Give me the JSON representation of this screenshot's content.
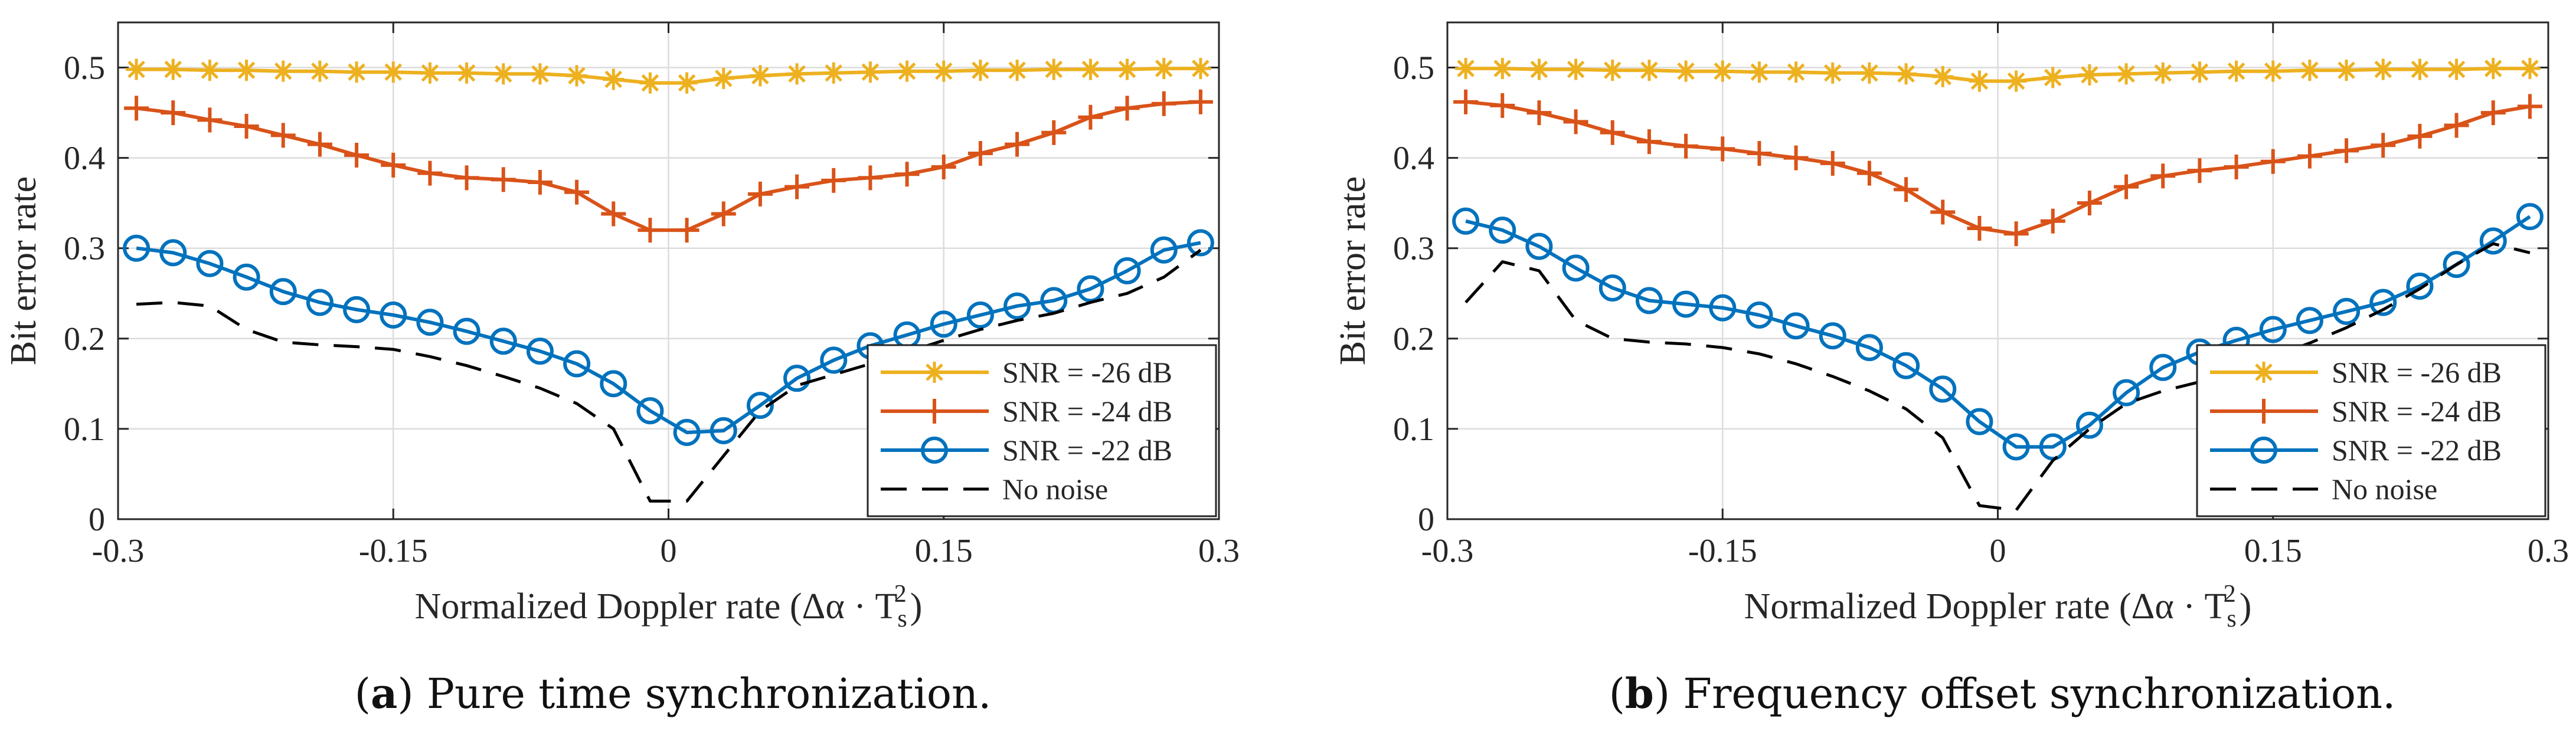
{
  "chart_data": [
    {
      "type": "line",
      "panel": "a",
      "caption_label": "a",
      "caption_text": "Pure time synchronization.",
      "xlabel": "Normalized Doppler rate (Δα · T",
      "xlabel_sub": "s",
      "xlabel_sup": "2",
      "xlabel_close": ")",
      "ylabel": "Bit error rate",
      "xlim": [
        -0.3,
        0.3
      ],
      "ylim": [
        0,
        0.55
      ],
      "xticks": [
        -0.3,
        -0.15,
        0,
        0.15,
        0.3
      ],
      "xtick_labels": [
        "-0.3",
        "-0.15",
        "0",
        "0.15",
        "0.3"
      ],
      "yticks": [
        0,
        0.1,
        0.2,
        0.3,
        0.4,
        0.5
      ],
      "ytick_labels": [
        "0",
        "0.1",
        "0.2",
        "0.3",
        "0.4",
        "0.5"
      ],
      "grid": true,
      "legend_position": "lower-right",
      "x": [
        -0.29,
        -0.27,
        -0.25,
        -0.23,
        -0.21,
        -0.19,
        -0.17,
        -0.15,
        -0.13,
        -0.11,
        -0.09,
        -0.07,
        -0.05,
        -0.03,
        -0.01,
        0.01,
        0.03,
        0.05,
        0.07,
        0.09,
        0.11,
        0.13,
        0.15,
        0.17,
        0.19,
        0.21,
        0.23,
        0.25,
        0.27,
        0.29
      ],
      "series": [
        {
          "name": "SNR = -26 dB",
          "marker": "star",
          "color": "#edb120",
          "values": [
            0.498,
            0.498,
            0.497,
            0.497,
            0.496,
            0.496,
            0.495,
            0.495,
            0.494,
            0.494,
            0.493,
            0.493,
            0.491,
            0.487,
            0.483,
            0.483,
            0.488,
            0.491,
            0.493,
            0.494,
            0.495,
            0.496,
            0.496,
            0.497,
            0.497,
            0.498,
            0.498,
            0.498,
            0.499,
            0.499
          ]
        },
        {
          "name": "SNR = -24 dB",
          "marker": "plus",
          "color": "#d95319",
          "values": [
            0.455,
            0.45,
            0.442,
            0.435,
            0.425,
            0.415,
            0.403,
            0.392,
            0.383,
            0.378,
            0.376,
            0.373,
            0.362,
            0.338,
            0.32,
            0.32,
            0.338,
            0.36,
            0.368,
            0.375,
            0.378,
            0.382,
            0.39,
            0.405,
            0.415,
            0.428,
            0.445,
            0.455,
            0.46,
            0.462
          ]
        },
        {
          "name": "SNR = -22 dB",
          "marker": "circle",
          "color": "#0072bd",
          "values": [
            0.3,
            0.295,
            0.283,
            0.268,
            0.252,
            0.24,
            0.232,
            0.226,
            0.218,
            0.208,
            0.197,
            0.186,
            0.172,
            0.15,
            0.12,
            0.096,
            0.098,
            0.126,
            0.156,
            0.176,
            0.192,
            0.204,
            0.216,
            0.226,
            0.236,
            0.242,
            0.255,
            0.275,
            0.298,
            0.306
          ]
        },
        {
          "name": "No noise",
          "marker": "none",
          "color": "#000000",
          "dashed": true,
          "values": [
            0.238,
            0.24,
            0.236,
            0.21,
            0.196,
            0.193,
            0.191,
            0.188,
            0.18,
            0.17,
            0.158,
            0.145,
            0.128,
            0.1,
            0.02,
            0.02,
            0.07,
            0.12,
            0.148,
            0.16,
            0.172,
            0.185,
            0.198,
            0.21,
            0.22,
            0.228,
            0.24,
            0.25,
            0.268,
            0.298
          ]
        }
      ]
    },
    {
      "type": "line",
      "panel": "b",
      "caption_label": "b",
      "caption_text": "Frequency offset synchronization.",
      "xlabel": "Normalized Doppler rate (Δα · T",
      "xlabel_sub": "s",
      "xlabel_sup": "2",
      "xlabel_close": ")",
      "ylabel": "Bit error rate",
      "xlim": [
        -0.3,
        0.3
      ],
      "ylim": [
        0,
        0.55
      ],
      "xticks": [
        -0.3,
        -0.15,
        0,
        0.15,
        0.3
      ],
      "xtick_labels": [
        "-0.3",
        "-0.15",
        "0",
        "0.15",
        "0.3"
      ],
      "yticks": [
        0,
        0.1,
        0.2,
        0.3,
        0.4,
        0.5
      ],
      "ytick_labels": [
        "0",
        "0.1",
        "0.2",
        "0.3",
        "0.4",
        "0.5"
      ],
      "grid": true,
      "legend_position": "lower-right",
      "x": [
        -0.29,
        -0.27,
        -0.25,
        -0.23,
        -0.21,
        -0.19,
        -0.17,
        -0.15,
        -0.13,
        -0.11,
        -0.09,
        -0.07,
        -0.05,
        -0.03,
        -0.01,
        0.01,
        0.03,
        0.05,
        0.07,
        0.09,
        0.11,
        0.13,
        0.15,
        0.17,
        0.19,
        0.21,
        0.23,
        0.25,
        0.27,
        0.29
      ],
      "series": [
        {
          "name": "SNR = -26 dB",
          "marker": "star",
          "color": "#edb120",
          "values": [
            0.499,
            0.499,
            0.498,
            0.498,
            0.497,
            0.497,
            0.496,
            0.496,
            0.495,
            0.495,
            0.494,
            0.494,
            0.493,
            0.49,
            0.485,
            0.485,
            0.489,
            0.492,
            0.493,
            0.494,
            0.495,
            0.496,
            0.496,
            0.497,
            0.497,
            0.498,
            0.498,
            0.498,
            0.499,
            0.499
          ]
        },
        {
          "name": "SNR = -24 dB",
          "marker": "plus",
          "color": "#d95319",
          "values": [
            0.462,
            0.458,
            0.45,
            0.44,
            0.428,
            0.418,
            0.413,
            0.41,
            0.405,
            0.4,
            0.394,
            0.383,
            0.365,
            0.34,
            0.322,
            0.316,
            0.33,
            0.35,
            0.368,
            0.38,
            0.386,
            0.39,
            0.396,
            0.402,
            0.408,
            0.414,
            0.424,
            0.436,
            0.45,
            0.457
          ]
        },
        {
          "name": "SNR = -22 dB",
          "marker": "circle",
          "color": "#0072bd",
          "values": [
            0.33,
            0.32,
            0.302,
            0.278,
            0.256,
            0.242,
            0.238,
            0.234,
            0.226,
            0.214,
            0.203,
            0.19,
            0.17,
            0.144,
            0.108,
            0.08,
            0.08,
            0.104,
            0.14,
            0.168,
            0.185,
            0.198,
            0.21,
            0.22,
            0.23,
            0.24,
            0.258,
            0.282,
            0.308,
            0.335
          ]
        },
        {
          "name": "No noise",
          "marker": "none",
          "color": "#000000",
          "dashed": true,
          "values": [
            0.24,
            0.285,
            0.275,
            0.22,
            0.2,
            0.196,
            0.194,
            0.19,
            0.183,
            0.172,
            0.158,
            0.142,
            0.122,
            0.09,
            0.015,
            0.01,
            0.065,
            0.1,
            0.128,
            0.142,
            0.152,
            0.165,
            0.18,
            0.195,
            0.212,
            0.232,
            0.255,
            0.282,
            0.305,
            0.295
          ]
        }
      ]
    }
  ]
}
